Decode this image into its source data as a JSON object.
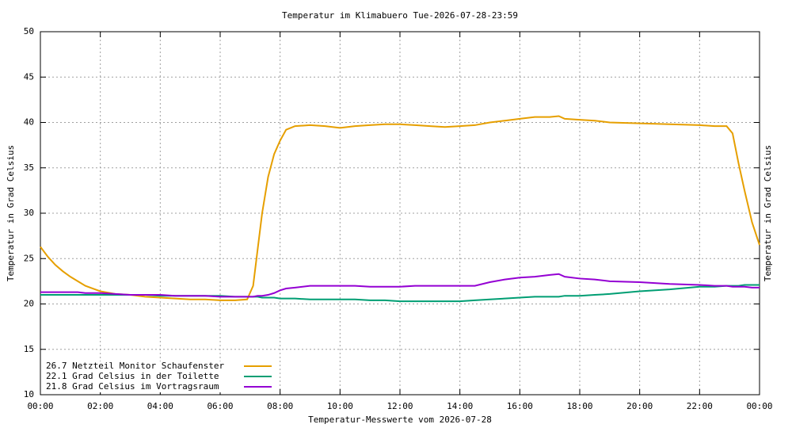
{
  "chart_data": {
    "type": "line",
    "title": "Temperatur im Klimabuero Tue-2026-07-28-23:59",
    "xlabel": "Temperatur-Messwerte vom 2026-07-28",
    "ylabel": "Temperatur in Grad Celsius",
    "y2label": "Temperatur in Grad Celsius",
    "x": [
      0,
      0.25,
      0.5,
      0.75,
      1,
      1.25,
      1.5,
      1.75,
      2,
      2.5,
      3,
      3.5,
      4,
      4.5,
      5,
      5.5,
      6,
      6.5,
      6.9,
      7.1,
      7.25,
      7.4,
      7.6,
      7.8,
      8,
      8.2,
      8.5,
      9,
      9.5,
      10,
      10.5,
      11,
      11.5,
      12,
      12.5,
      13,
      13.5,
      14,
      14.5,
      15,
      15.5,
      16,
      16.5,
      17,
      17.3,
      17.5,
      18,
      18.5,
      19,
      20,
      21,
      22,
      22.5,
      22.9,
      23.1,
      23.3,
      23.5,
      23.75,
      24
    ],
    "series": [
      {
        "name": "26.7 Netzteil Monitor Schaufenster",
        "color": "#e69f00",
        "values": [
          26.3,
          25.2,
          24.3,
          23.6,
          23.0,
          22.5,
          22.0,
          21.7,
          21.4,
          21.1,
          21.0,
          20.8,
          20.7,
          20.6,
          20.5,
          20.5,
          20.4,
          20.4,
          20.5,
          22,
          26,
          30,
          34,
          36.5,
          38,
          39.2,
          39.6,
          39.7,
          39.6,
          39.4,
          39.6,
          39.7,
          39.8,
          39.8,
          39.7,
          39.6,
          39.5,
          39.6,
          39.7,
          40.0,
          40.2,
          40.4,
          40.6,
          40.6,
          40.7,
          40.4,
          40.3,
          40.2,
          40.0,
          39.9,
          39.8,
          39.7,
          39.6,
          39.6,
          38.8,
          35.5,
          32.5,
          29,
          26.5
        ]
      },
      {
        "name": "22.1 Grad Celsius in der Toilette",
        "color": "#009e73",
        "values": [
          21.0,
          21.0,
          21.0,
          21.0,
          21.0,
          21.0,
          21.0,
          21.0,
          21.0,
          21.0,
          21.0,
          21.0,
          20.9,
          20.9,
          20.9,
          20.9,
          20.9,
          20.8,
          20.8,
          20.8,
          20.8,
          20.7,
          20.7,
          20.7,
          20.6,
          20.6,
          20.6,
          20.5,
          20.5,
          20.5,
          20.5,
          20.4,
          20.4,
          20.3,
          20.3,
          20.3,
          20.3,
          20.3,
          20.4,
          20.5,
          20.6,
          20.7,
          20.8,
          20.8,
          20.8,
          20.9,
          20.9,
          21.0,
          21.1,
          21.4,
          21.6,
          21.9,
          21.9,
          22.0,
          22.0,
          22.0,
          22.1,
          22.1,
          22.1
        ]
      },
      {
        "name": "21.8 Grad Celsius im Vortragsraum",
        "color": "#9400d3",
        "values": [
          21.3,
          21.3,
          21.3,
          21.3,
          21.3,
          21.3,
          21.2,
          21.2,
          21.2,
          21.1,
          21.0,
          21.0,
          21.0,
          20.9,
          20.9,
          20.9,
          20.8,
          20.8,
          20.8,
          20.8,
          20.9,
          20.9,
          21.0,
          21.2,
          21.5,
          21.7,
          21.8,
          22.0,
          22.0,
          22.0,
          22.0,
          21.9,
          21.9,
          21.9,
          22.0,
          22.0,
          22.0,
          22.0,
          22.0,
          22.4,
          22.7,
          22.9,
          23.0,
          23.2,
          23.3,
          23.0,
          22.8,
          22.7,
          22.5,
          22.4,
          22.2,
          22.1,
          22.0,
          22.0,
          21.9,
          21.9,
          21.9,
          21.8,
          21.8
        ]
      }
    ],
    "xlim": [
      0,
      24
    ],
    "xticks": [
      {
        "value": 0,
        "label": "00:00"
      },
      {
        "value": 2,
        "label": "02:00"
      },
      {
        "value": 4,
        "label": "04:00"
      },
      {
        "value": 6,
        "label": "06:00"
      },
      {
        "value": 8,
        "label": "08:00"
      },
      {
        "value": 10,
        "label": "10:00"
      },
      {
        "value": 12,
        "label": "12:00"
      },
      {
        "value": 14,
        "label": "14:00"
      },
      {
        "value": 16,
        "label": "16:00"
      },
      {
        "value": 18,
        "label": "18:00"
      },
      {
        "value": 20,
        "label": "20:00"
      },
      {
        "value": 22,
        "label": "22:00"
      },
      {
        "value": 24,
        "label": "00:00"
      }
    ],
    "ylim": [
      10,
      50
    ],
    "yticks": [
      10,
      15,
      20,
      25,
      30,
      35,
      40,
      45,
      50
    ],
    "grid": true,
    "legend": "bottom-left"
  }
}
